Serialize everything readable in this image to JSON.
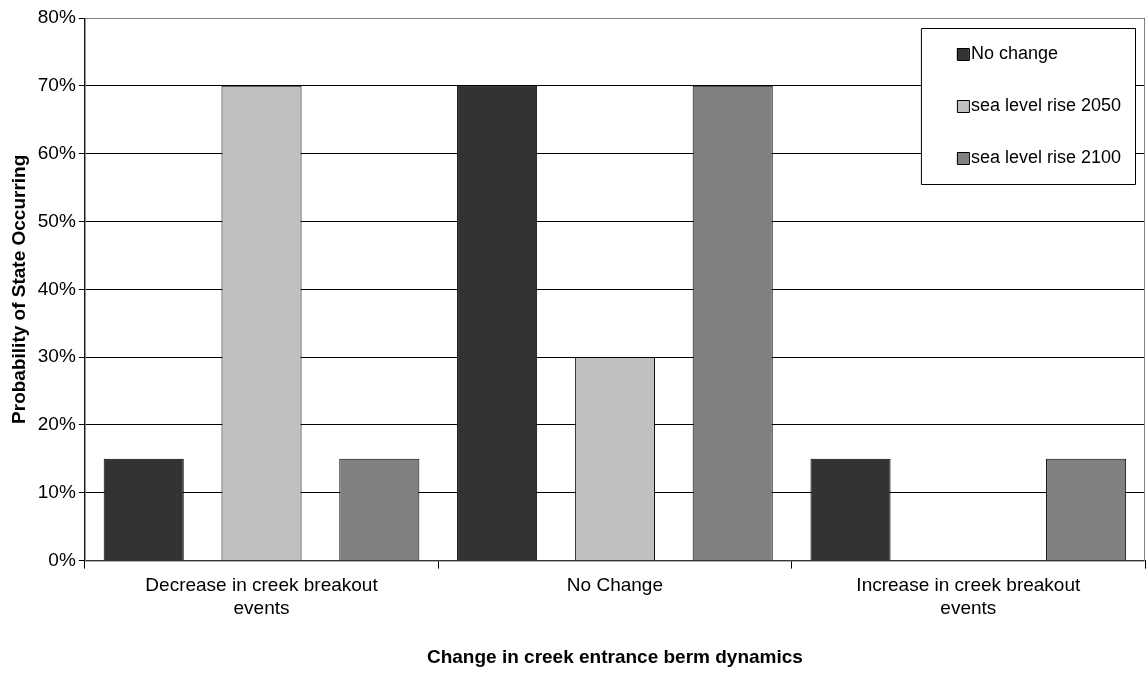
{
  "chart_data": {
    "type": "bar",
    "xlabel": "Change in creek entrance berm dynamics",
    "ylabel": "Probability of State Occurring",
    "categories": [
      [
        "Decrease in creek breakout",
        "events"
      ],
      "No Change",
      [
        "Increase in creek breakout",
        "events"
      ]
    ],
    "series": [
      {
        "name": "No change",
        "color": "#333333",
        "values": [
          15,
          70,
          15
        ]
      },
      {
        "name": "sea level rise 2050",
        "color": "#c0c0c0",
        "values": [
          70,
          30,
          0
        ]
      },
      {
        "name": "sea level rise 2100",
        "color": "#808080",
        "values": [
          15,
          70,
          15
        ]
      }
    ],
    "ylim": [
      0,
      80
    ],
    "yticks": [
      {
        "value": 0,
        "label": "0%"
      },
      {
        "value": 10,
        "label": "10%"
      },
      {
        "value": 20,
        "label": "20%"
      },
      {
        "value": 30,
        "label": "30%"
      },
      {
        "value": 40,
        "label": "40%"
      },
      {
        "value": 50,
        "label": "50%"
      },
      {
        "value": 60,
        "label": "60%"
      },
      {
        "value": 70,
        "label": "70%"
      },
      {
        "value": 80,
        "label": "80%"
      }
    ],
    "grid": "y",
    "legend": "top right"
  }
}
